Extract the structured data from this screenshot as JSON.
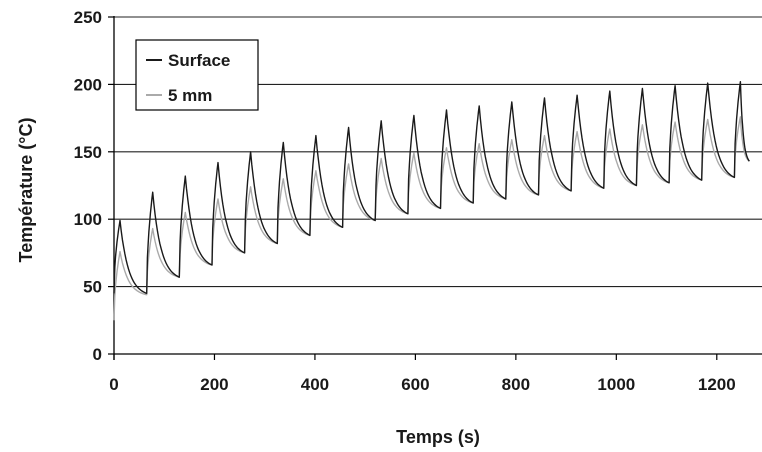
{
  "chart_data": {
    "type": "line",
    "xlabel": "Temps (s)",
    "ylabel": "Température (°C)",
    "xlim": [
      0,
      1290
    ],
    "ylim": [
      0,
      250
    ],
    "x_ticks": [
      "0",
      "200",
      "400",
      "600",
      "800",
      "1000",
      "1200"
    ],
    "y_ticks": [
      "0",
      "50",
      "100",
      "150",
      "200",
      "250"
    ],
    "grid": "horizontal",
    "legend_position": "top-left",
    "cycle_period_s": 65,
    "heating_duration_s": 12,
    "series": [
      {
        "name": "Surface",
        "color": "#1a1a1a",
        "peaks": [
          99,
          120,
          132,
          142,
          150,
          157,
          162,
          168,
          173,
          177,
          181,
          184,
          187,
          190,
          192,
          195,
          197,
          199,
          201,
          202
        ],
        "valleys": [
          45,
          57,
          66,
          75,
          82,
          88,
          94,
          99,
          104,
          108,
          112,
          115,
          118,
          121,
          123,
          125,
          127,
          129,
          131,
          143
        ]
      },
      {
        "name": "5 mm",
        "color": "#aaaaaa",
        "peaks": [
          76,
          93,
          105,
          115,
          124,
          130,
          136,
          141,
          145,
          149,
          153,
          156,
          159,
          162,
          165,
          167,
          170,
          172,
          174,
          176
        ],
        "valleys": [
          44,
          57,
          66,
          75,
          82,
          88,
          94,
          99,
          104,
          108,
          112,
          115,
          118,
          121,
          123,
          125,
          127,
          129,
          131,
          143
        ]
      }
    ]
  }
}
